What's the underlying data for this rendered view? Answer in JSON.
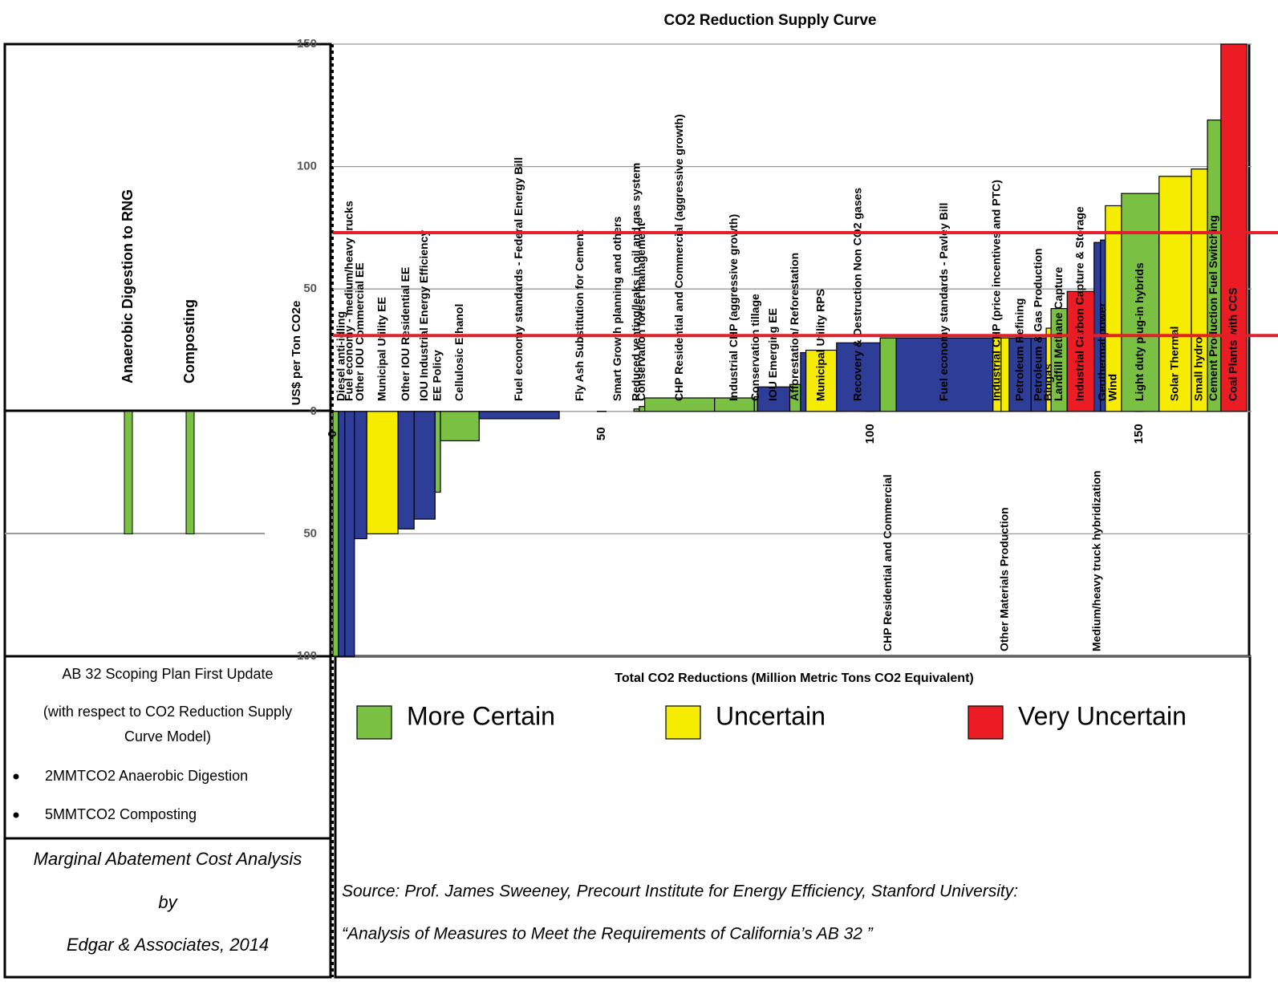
{
  "chart_data": {
    "type": "mac",
    "title": "CO2 Reduction Supply Curve",
    "y_label": "US$ per Ton CO2e",
    "x_label": "Total CO2 Reductions (Million Metric Tons CO2 Equivalent)",
    "xlim": [
      0,
      170
    ],
    "xticks": [
      0,
      50,
      100,
      150
    ],
    "ylim": [
      -100,
      150
    ],
    "yticks": [
      {
        "value": -100,
        "label": "100"
      },
      {
        "value": -50,
        "label": "50"
      },
      0,
      50,
      100,
      150
    ],
    "grid": true,
    "reference_lines": [
      73,
      31
    ],
    "reference_color": "#e3202a",
    "segments": [
      {
        "x0": 0,
        "x1": 1,
        "value": -100,
        "color": "#7ac143"
      },
      {
        "x0": 1,
        "x1": 2.2,
        "value": -100,
        "color": "#2e3d98",
        "label": "Diesel anti-idling"
      },
      {
        "x0": 2.2,
        "x1": 4,
        "value": -100,
        "color": "#2e3d98",
        "label": "Fuel economy - medium/heavy trucks"
      },
      {
        "x0": 4,
        "x1": 6.3,
        "value": -52,
        "color": "#2e3d98",
        "label": "Other IOU Commercial EE"
      },
      {
        "x0": 6.3,
        "x1": 12.1,
        "value": -50,
        "color": "#f5ec00",
        "label": "Municipal Utility EE"
      },
      {
        "x0": 12.1,
        "x1": 15.1,
        "value": -48,
        "color": "#2e3d98",
        "label": "Other IOU Residential EE"
      },
      {
        "x0": 15.1,
        "x1": 19,
        "value": -44,
        "color": "#2e3d98",
        "label": "IOU Industrial Energy Efficiency"
      },
      {
        "x0": 19,
        "x1": 20,
        "value": -33,
        "color": "#7ac143",
        "label": "EE Policy"
      },
      {
        "x0": 20,
        "x1": 27.2,
        "value": -12,
        "color": "#7ac143",
        "label": "Cellulosic Ethanol"
      },
      {
        "x0": 27.2,
        "x1": 42.1,
        "value": -3,
        "color": "#2e3d98",
        "label": "Fuel economy standards - Federal Energy Bill"
      },
      {
        "x0": 42.1,
        "x1": 50,
        "value": 0,
        "color": "#2e3d98",
        "label": "Fly Ash Substitution for Cement"
      },
      {
        "x0": 50,
        "x1": 56,
        "value": 0,
        "color": "#2e3d98",
        "label": "Smart Growth planning and others"
      },
      {
        "x0": 56,
        "x1": 57,
        "value": 1,
        "color": "#7ac143",
        "label": "Reduced venting/leaks in oil and gas system"
      },
      {
        "x0": 57,
        "x1": 58,
        "value": 2,
        "color": "#7ac143",
        "label": "Conservation forest management"
      },
      {
        "x0": 58,
        "x1": 71,
        "value": 5.5,
        "color": "#7ac143",
        "label": "CHP Residential and Commercial (aggressive growth)"
      },
      {
        "x0": 71,
        "x1": 78.4,
        "value": 5.5,
        "color": "#7ac143",
        "label": "Industrial CHP (aggressive growth)"
      },
      {
        "x0": 78.4,
        "x1": 79,
        "value": 6,
        "color": "#7ac143",
        "label": "Conservation tillage"
      },
      {
        "x0": 79,
        "x1": 85,
        "value": 10,
        "color": "#2e3d98",
        "label": "IOU Emerging EE"
      },
      {
        "x0": 85,
        "x1": 87,
        "value": 11,
        "color": "#7ac143",
        "label": "Afforestation/ Reforestation"
      },
      {
        "x0": 87,
        "x1": 88,
        "value": 24,
        "color": "#2e3d98"
      },
      {
        "x0": 88,
        "x1": 93.7,
        "value": 25,
        "color": "#f5ec00",
        "label": "Municipal Utility RPS"
      },
      {
        "x0": 93.7,
        "x1": 101.8,
        "value": 28,
        "color": "#2e3d98",
        "label": "Recovery & Destruction Non CO2 gases"
      },
      {
        "x0": 101.8,
        "x1": 104.8,
        "value": 30,
        "color": "#7ac143",
        "label": "CHP Residential and Commercial"
      },
      {
        "x0": 104.8,
        "x1": 122.8,
        "value": 30,
        "color": "#2e3d98",
        "label": "Fuel economy standards - Pavley Bill"
      },
      {
        "x0": 122.8,
        "x1": 124.3,
        "value": 30,
        "color": "#f5ec00",
        "label": "Industrial CHP (price incentives and PTC)"
      },
      {
        "x0": 124.3,
        "x1": 125.8,
        "value": 30,
        "color": "#f5ec00",
        "label": "Other Materials Production"
      },
      {
        "x0": 125.8,
        "x1": 129.9,
        "value": 30,
        "color": "#2e3d98",
        "label": "Petroleum Refining"
      },
      {
        "x0": 129.9,
        "x1": 132.7,
        "value": 30,
        "color": "#2e3d98",
        "label": "Petroleum & Gas Production"
      },
      {
        "x0": 132.7,
        "x1": 133.6,
        "value": 34,
        "color": "#f5ec00",
        "label": "Biogas"
      },
      {
        "x0": 133.6,
        "x1": 136.6,
        "value": 42,
        "color": "#7ac143",
        "label": "Landfill Methane Capture"
      },
      {
        "x0": 136.6,
        "x1": 141.6,
        "value": 49,
        "color": "#ec1c24",
        "label": "Industrial Carbon Capture & Storage"
      },
      {
        "x0": 141.6,
        "x1": 142.8,
        "value": 69,
        "color": "#2e3d98",
        "label": "Medium/heavy truck hybridization"
      },
      {
        "x0": 142.8,
        "x1": 143.7,
        "value": 70,
        "color": "#2e3d98",
        "label": "Geothermal power"
      },
      {
        "x0": 143.7,
        "x1": 146.7,
        "value": 84,
        "color": "#f5ec00",
        "label": "Wind"
      },
      {
        "x0": 146.7,
        "x1": 153.7,
        "value": 89,
        "color": "#7ac143",
        "label": "Light duty plug-in hybrids"
      },
      {
        "x0": 153.7,
        "x1": 159.7,
        "value": 96,
        "color": "#f5ec00",
        "label": "Solar Thermal"
      },
      {
        "x0": 159.7,
        "x1": 162.7,
        "value": 99,
        "color": "#f5ec00",
        "label": "Small hydro"
      },
      {
        "x0": 162.7,
        "x1": 165.2,
        "value": 119,
        "color": "#7ac143",
        "label": "Cement Production Fuel Switching"
      },
      {
        "x0": 165.2,
        "x1": 170,
        "value": 150,
        "color": "#ec1c24",
        "label": "Coal Plants with CCS"
      }
    ],
    "left_bars": [
      {
        "name": "Anaerobic Digestion to RNG",
        "value": -50,
        "color": "#7ac143"
      },
      {
        "name": "Composting",
        "value": -50,
        "color": "#7ac143"
      }
    ],
    "legend": [
      {
        "name": "More Certain",
        "color": "#7ac143"
      },
      {
        "name": "Uncertain",
        "color": "#f5ec00"
      },
      {
        "name": "Very Uncertain",
        "color": "#ec1c24"
      }
    ]
  },
  "notes": {
    "heading": "AB 32 Scoping Plan First Update",
    "subheading": "(with respect to CO2 Reduction Supply Curve Model)",
    "bullets": [
      "2MMTCO2 Anaerobic Digestion",
      "5MMTCO2 Composting"
    ]
  },
  "credit": [
    "Marginal Abatement Cost Analysis",
    "by",
    "Edgar & Associates, 2014"
  ],
  "source": [
    "Source: Prof. James Sweeney, Precourt Institute  for Energy Efficiency, Stanford University:",
    "“Analysis of  Measures to Meet the Requirements of California’s AB 32 ”"
  ]
}
